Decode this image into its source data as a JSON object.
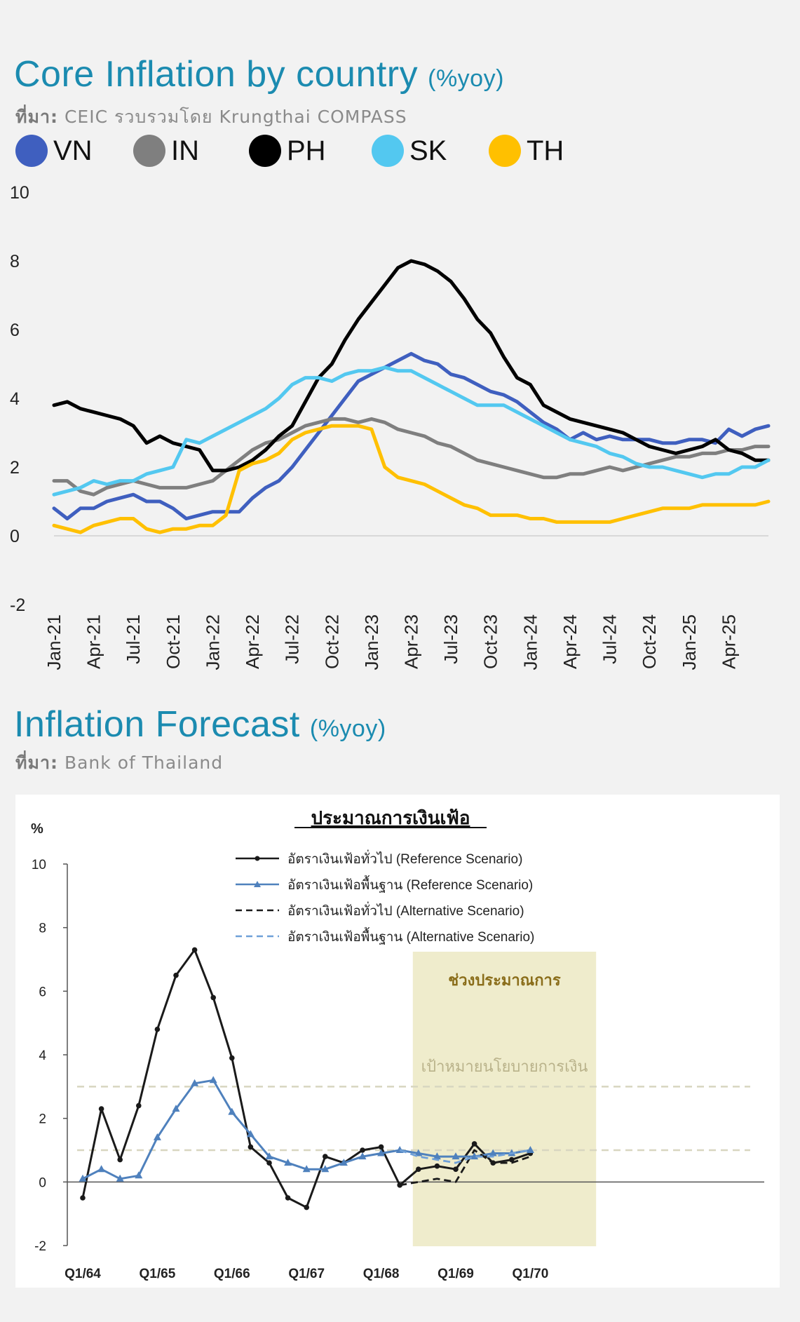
{
  "chart1": {
    "title": "Core Inflation by country",
    "unit": "(%yoy)",
    "source_label": "ที่มา:",
    "source_text": "CEIC รวบรวมโดย Krungthai COMPASS",
    "chart_data": {
      "type": "line",
      "title": "Core Inflation by country",
      "ylim": [
        -2,
        10
      ],
      "yticks": [
        "10",
        "8",
        "6",
        "4",
        "2",
        "0",
        "-2"
      ],
      "x_tick_labels": [
        "Jan-21",
        "Apr-21",
        "Jul-21",
        "Oct-21",
        "Jan-22",
        "Apr-22",
        "Jul-22",
        "Oct-22",
        "Jan-23",
        "Apr-23",
        "Jul-23",
        "Oct-23",
        "Jan-24",
        "Apr-24",
        "Jul-24",
        "Oct-24",
        "Jan-25",
        "Apr-25"
      ],
      "x_start": "Jan-21",
      "x_end": "Apr-25",
      "grid": false,
      "legend": "top-left",
      "series": [
        {
          "name": "VN",
          "color": "#3f5fbf",
          "values": [
            0.8,
            0.5,
            0.8,
            0.8,
            1.0,
            1.1,
            1.2,
            1.0,
            1.0,
            0.8,
            0.5,
            0.6,
            0.7,
            0.7,
            0.7,
            1.1,
            1.4,
            1.6,
            2.0,
            2.5,
            3.0,
            3.5,
            4.0,
            4.5,
            4.7,
            4.9,
            5.1,
            5.3,
            5.1,
            5.0,
            4.7,
            4.6,
            4.4,
            4.2,
            4.1,
            3.9,
            3.6,
            3.3,
            3.1,
            2.8,
            3.0,
            2.8,
            2.9,
            2.8,
            2.8,
            2.8,
            2.7,
            2.7,
            2.8,
            2.8,
            2.7,
            3.1,
            2.9,
            3.1,
            3.2
          ]
        },
        {
          "name": "IN",
          "color": "#7f7f7f",
          "values": [
            1.6,
            1.6,
            1.3,
            1.2,
            1.4,
            1.5,
            1.6,
            1.5,
            1.4,
            1.4,
            1.4,
            1.5,
            1.6,
            1.9,
            2.2,
            2.5,
            2.7,
            2.8,
            3.0,
            3.2,
            3.3,
            3.4,
            3.4,
            3.3,
            3.4,
            3.3,
            3.1,
            3.0,
            2.9,
            2.7,
            2.6,
            2.4,
            2.2,
            2.1,
            2.0,
            1.9,
            1.8,
            1.7,
            1.7,
            1.8,
            1.8,
            1.9,
            2.0,
            1.9,
            2.0,
            2.1,
            2.2,
            2.3,
            2.3,
            2.4,
            2.4,
            2.5,
            2.5,
            2.6,
            2.6
          ]
        },
        {
          "name": "PH",
          "color": "#000000",
          "values": [
            3.8,
            3.9,
            3.7,
            3.6,
            3.5,
            3.4,
            3.2,
            2.7,
            2.9,
            2.7,
            2.6,
            2.5,
            1.9,
            1.9,
            2.0,
            2.2,
            2.5,
            2.9,
            3.2,
            3.9,
            4.6,
            5.0,
            5.7,
            6.3,
            6.8,
            7.3,
            7.8,
            8.0,
            7.9,
            7.7,
            7.4,
            6.9,
            6.3,
            5.9,
            5.2,
            4.6,
            4.4,
            3.8,
            3.6,
            3.4,
            3.3,
            3.2,
            3.1,
            3.0,
            2.8,
            2.6,
            2.5,
            2.4,
            2.5,
            2.6,
            2.8,
            2.5,
            2.4,
            2.2,
            2.2
          ]
        },
        {
          "name": "SK",
          "color": "#53c8f0",
          "values": [
            1.2,
            1.3,
            1.4,
            1.6,
            1.5,
            1.6,
            1.6,
            1.8,
            1.9,
            2.0,
            2.8,
            2.7,
            2.9,
            3.1,
            3.3,
            3.5,
            3.7,
            4.0,
            4.4,
            4.6,
            4.6,
            4.5,
            4.7,
            4.8,
            4.8,
            4.9,
            4.8,
            4.8,
            4.6,
            4.4,
            4.2,
            4.0,
            3.8,
            3.8,
            3.8,
            3.6,
            3.4,
            3.2,
            3.0,
            2.8,
            2.7,
            2.6,
            2.4,
            2.3,
            2.1,
            2.0,
            2.0,
            1.9,
            1.8,
            1.7,
            1.8,
            1.8,
            2.0,
            2.0,
            2.2
          ]
        },
        {
          "name": "TH",
          "color": "#ffc000",
          "values": [
            0.3,
            0.2,
            0.1,
            0.3,
            0.4,
            0.5,
            0.5,
            0.2,
            0.1,
            0.2,
            0.2,
            0.3,
            0.3,
            0.6,
            1.9,
            2.1,
            2.2,
            2.4,
            2.8,
            3.0,
            3.1,
            3.2,
            3.2,
            3.2,
            3.1,
            2.0,
            1.7,
            1.6,
            1.5,
            1.3,
            1.1,
            0.9,
            0.8,
            0.6,
            0.6,
            0.6,
            0.5,
            0.5,
            0.4,
            0.4,
            0.4,
            0.4,
            0.4,
            0.5,
            0.6,
            0.7,
            0.8,
            0.8,
            0.8,
            0.9,
            0.9,
            0.9,
            0.9,
            0.9,
            1.0
          ]
        }
      ]
    }
  },
  "chart2": {
    "title": "Inflation Forecast",
    "unit": "(%yoy)",
    "source_label": "ที่มา:",
    "source_text": "Bank of Thailand",
    "chart_data": {
      "type": "line",
      "title": "ประมาณการเงินเฟ้อ",
      "ylabel": "%",
      "ylim": [
        -2,
        10
      ],
      "yticks": [
        "10",
        "8",
        "6",
        "4",
        "2",
        "0",
        "-2"
      ],
      "x_tick_labels": [
        "Q1/64",
        "Q1/65",
        "Q1/66",
        "Q1/67",
        "Q1/68",
        "Q1/69",
        "Q1/70"
      ],
      "x_start": "Q1/64",
      "x_end": "Q1/70",
      "grid": false,
      "legend": "top",
      "forecast_band": {
        "label": "ช่วงประมาณการ",
        "from": "Q3/68",
        "to": "Q4/70"
      },
      "target_band": {
        "label": "เป้าหมายนโยบายการเงิน",
        "lower": 1,
        "upper": 3
      },
      "series": [
        {
          "name": "อัตราเงินเฟ้อทั่วไป (Reference Scenario)",
          "style": "solid-dot",
          "color": "#1a1a1a",
          "start": "Q1/64",
          "values": [
            -0.5,
            2.3,
            0.7,
            2.4,
            4.8,
            6.5,
            7.3,
            5.8,
            3.9,
            1.1,
            0.6,
            -0.5,
            -0.8,
            0.8,
            0.6,
            1.0,
            1.1,
            -0.1,
            0.4,
            0.5,
            0.4,
            1.2,
            0.6,
            0.7,
            0.9
          ]
        },
        {
          "name": "อัตราเงินเฟ้อพื้นฐาน (Reference Scenario)",
          "style": "solid-triangle",
          "color": "#4f81bd",
          "start": "Q1/64",
          "values": [
            0.1,
            0.4,
            0.1,
            0.2,
            1.4,
            2.3,
            3.1,
            3.2,
            2.2,
            1.5,
            0.8,
            0.6,
            0.4,
            0.4,
            0.6,
            0.8,
            0.9,
            1.0,
            0.9,
            0.8,
            0.8,
            0.8,
            0.9,
            0.9,
            1.0
          ]
        },
        {
          "name": "อัตราเงินเฟ้อทั่วไป (Alternative Scenario)",
          "style": "dashed",
          "color": "#1a1a1a",
          "start": "Q2/68",
          "values": [
            -0.1,
            0.0,
            0.1,
            0.0,
            1.0,
            0.6,
            0.6,
            0.8
          ]
        },
        {
          "name": "อัตราเงินเฟ้อพื้นฐาน (Alternative Scenario)",
          "style": "dashed",
          "color": "#6fa0d8",
          "start": "Q2/68",
          "values": [
            1.0,
            0.8,
            0.7,
            0.6,
            0.8,
            0.8,
            0.9,
            1.0
          ]
        }
      ]
    }
  }
}
